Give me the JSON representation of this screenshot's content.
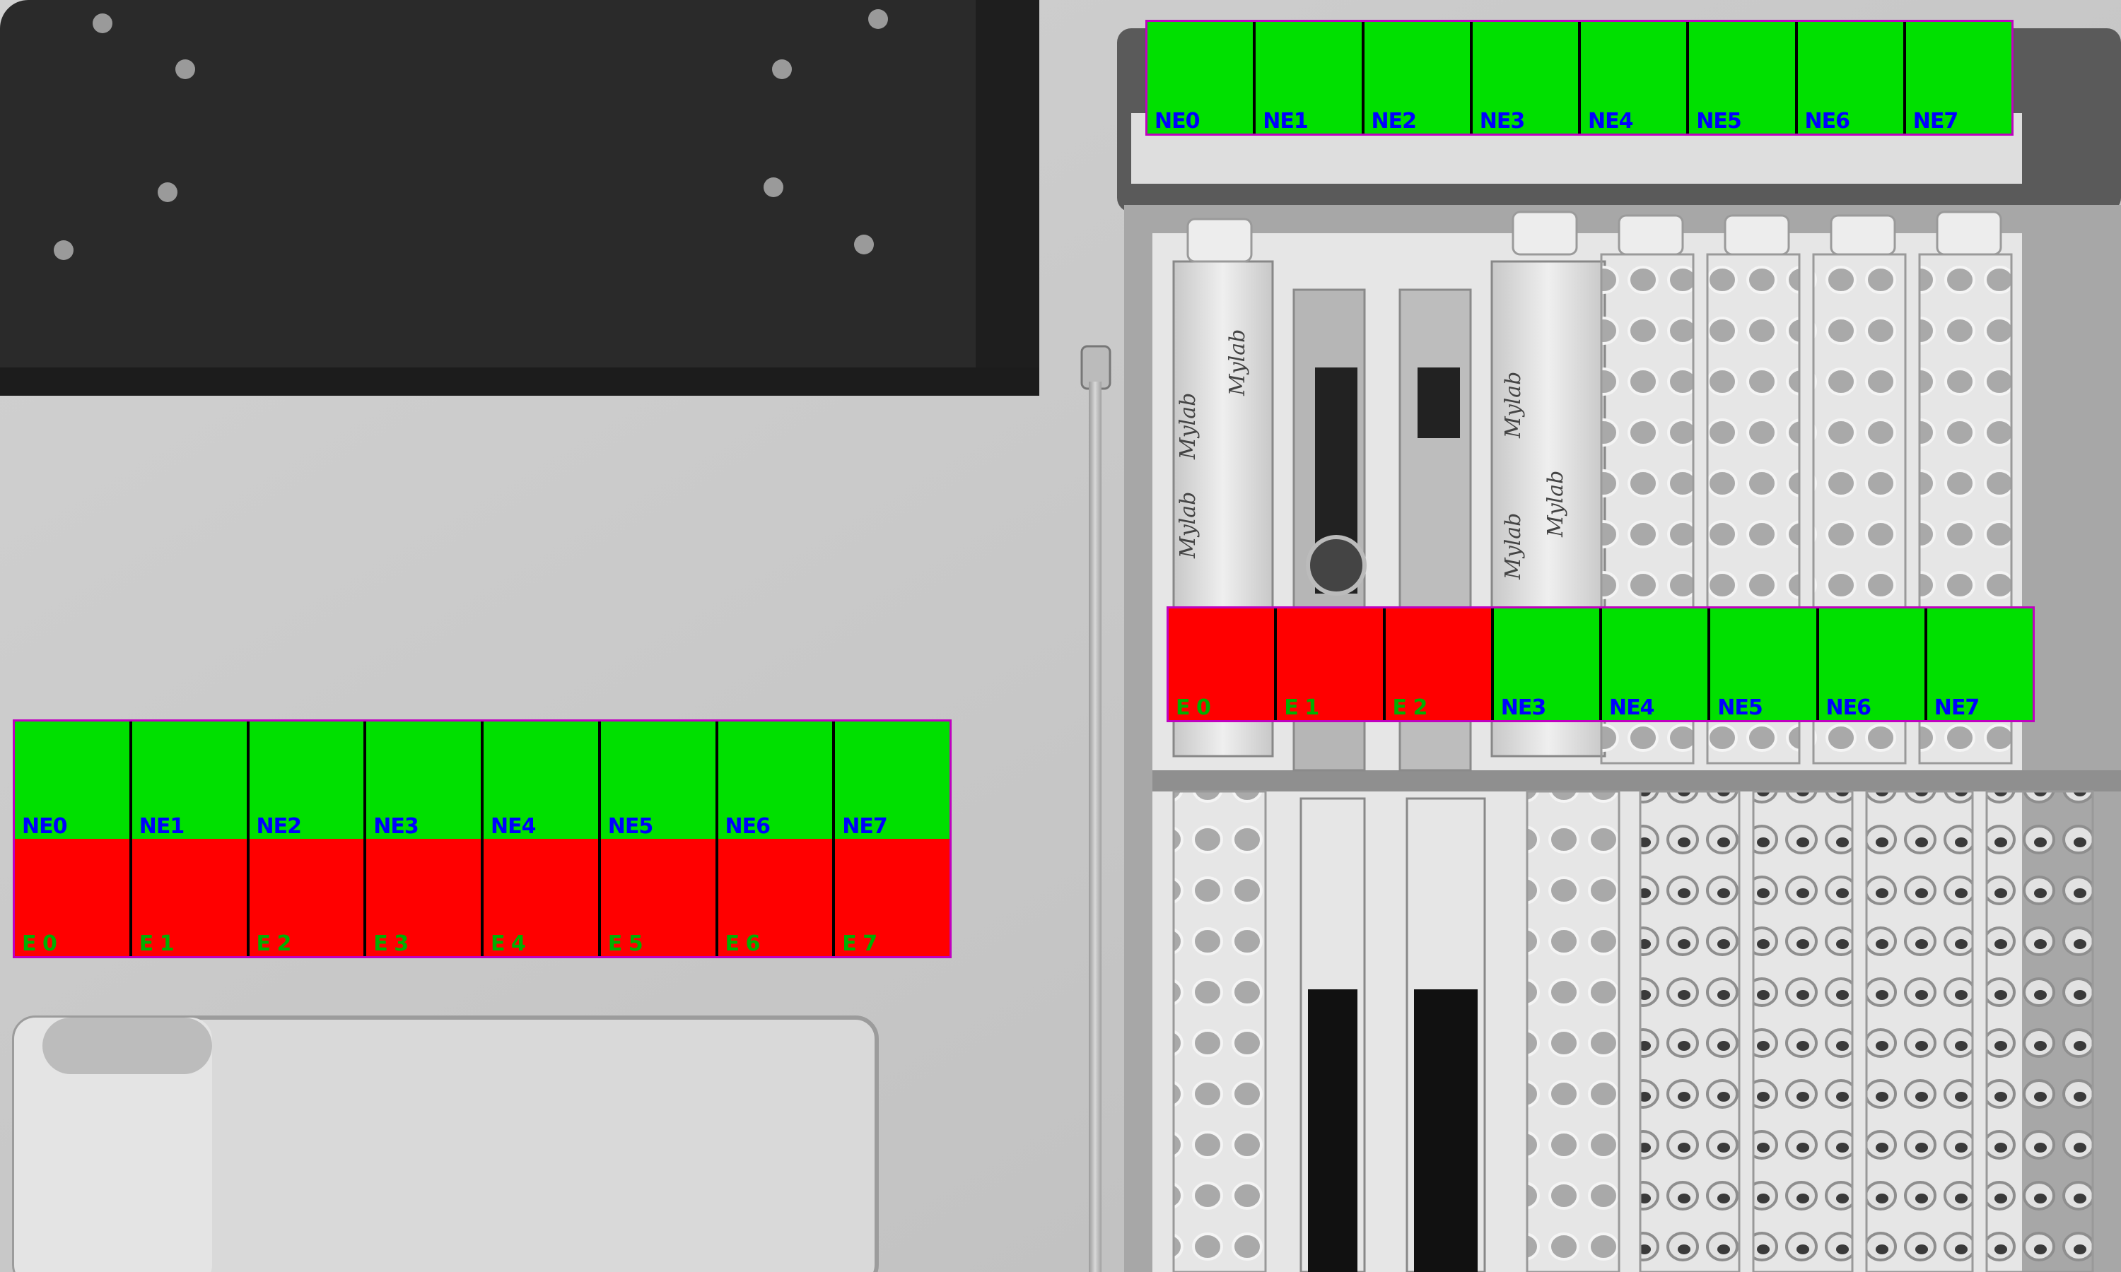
{
  "colors": {
    "ne_fill": "#00e000",
    "e_fill": "#ff0000",
    "ne_text": "#0000ff",
    "e_text": "#00b000",
    "grid_border": "#c000c0"
  },
  "grids": {
    "top": {
      "cells": [
        {
          "label": "NE0",
          "state": "ne"
        },
        {
          "label": "NE1",
          "state": "ne"
        },
        {
          "label": "NE2",
          "state": "ne"
        },
        {
          "label": "NE3",
          "state": "ne"
        },
        {
          "label": "NE4",
          "state": "ne"
        },
        {
          "label": "NE5",
          "state": "ne"
        },
        {
          "label": "NE6",
          "state": "ne"
        },
        {
          "label": "NE7",
          "state": "ne"
        }
      ]
    },
    "middle": {
      "cells": [
        {
          "label": "E 0",
          "state": "e"
        },
        {
          "label": "E 1",
          "state": "e"
        },
        {
          "label": "E 2",
          "state": "e"
        },
        {
          "label": "NE3",
          "state": "ne"
        },
        {
          "label": "NE4",
          "state": "ne"
        },
        {
          "label": "NE5",
          "state": "ne"
        },
        {
          "label": "NE6",
          "state": "ne"
        },
        {
          "label": "NE7",
          "state": "ne"
        }
      ]
    },
    "left": {
      "rows": [
        [
          {
            "label": "NE0",
            "state": "ne"
          },
          {
            "label": "NE1",
            "state": "ne"
          },
          {
            "label": "NE2",
            "state": "ne"
          },
          {
            "label": "NE3",
            "state": "ne"
          },
          {
            "label": "NE4",
            "state": "ne"
          },
          {
            "label": "NE5",
            "state": "ne"
          },
          {
            "label": "NE6",
            "state": "ne"
          },
          {
            "label": "NE7",
            "state": "ne"
          }
        ],
        [
          {
            "label": "E 0",
            "state": "e"
          },
          {
            "label": "E 1",
            "state": "e"
          },
          {
            "label": "E 2",
            "state": "e"
          },
          {
            "label": "E 3",
            "state": "e"
          },
          {
            "label": "E 4",
            "state": "e"
          },
          {
            "label": "E 5",
            "state": "e"
          },
          {
            "label": "E 6",
            "state": "e"
          },
          {
            "label": "E 7",
            "state": "e"
          }
        ]
      ]
    }
  },
  "strip_text": [
    "Mylab",
    "Mylab",
    "Mylab",
    "Mylab",
    "Mylab",
    "Mylab"
  ]
}
